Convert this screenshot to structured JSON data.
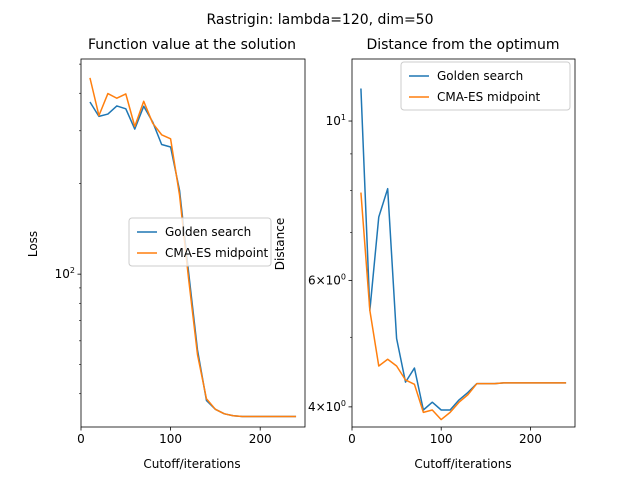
{
  "figure": {
    "suptitle": "Rastrigin: lambda=120, dim=50"
  },
  "chart_data": [
    {
      "type": "line",
      "title": "Function value at the solution",
      "xlabel": "Cutoff/iterations",
      "ylabel": "Loss",
      "yscale": "log",
      "xlim": [
        0,
        250
      ],
      "ylim": [
        31,
        520
      ],
      "xticks": [
        0,
        100,
        200
      ],
      "yticks": [
        {
          "value": 100,
          "label": "10^2"
        }
      ],
      "grid": false,
      "legend": "center-right",
      "x": [
        10,
        20,
        30,
        40,
        50,
        60,
        70,
        80,
        90,
        100,
        110,
        120,
        130,
        140,
        150,
        160,
        170,
        180,
        190,
        200,
        210,
        220,
        230,
        240
      ],
      "series": [
        {
          "name": "Golden search",
          "color": "#1f77b4",
          "values": [
            374,
            335,
            341,
            363,
            355,
            304,
            362,
            321,
            270,
            265,
            190,
            102,
            56,
            38,
            35.5,
            34.3,
            33.8,
            33.6,
            33.6,
            33.6,
            33.6,
            33.6,
            33.6,
            33.6
          ]
        },
        {
          "name": "CMA-ES midpoint",
          "color": "#ff7f0e",
          "values": [
            450,
            337,
            399,
            385,
            398,
            310,
            376,
            318,
            291,
            282,
            183,
            97,
            54,
            38.5,
            35.5,
            34.3,
            33.8,
            33.6,
            33.6,
            33.6,
            33.6,
            33.6,
            33.6,
            33.6
          ]
        }
      ]
    },
    {
      "type": "line",
      "title": "Distance from the optimum",
      "xlabel": "Cutoff/iterations",
      "ylabel": "Distance",
      "yscale": "log",
      "xlim": [
        0,
        250
      ],
      "ylim": [
        3.75,
        12.2
      ],
      "xticks": [
        0,
        100,
        200
      ],
      "yticks": [
        {
          "value": 10,
          "label": "10^1"
        },
        {
          "value": 6,
          "label": "6×10^0"
        },
        {
          "value": 4,
          "label": "4×10^0"
        }
      ],
      "grid": false,
      "legend": "top-right",
      "x": [
        10,
        20,
        30,
        40,
        50,
        60,
        70,
        80,
        90,
        100,
        110,
        120,
        130,
        140,
        150,
        160,
        170,
        180,
        190,
        200,
        210,
        220,
        230,
        240
      ],
      "series": [
        {
          "name": "Golden search",
          "color": "#1f77b4",
          "values": [
            11.1,
            5.45,
            7.35,
            8.05,
            4.98,
            4.33,
            4.53,
            3.96,
            4.06,
            3.96,
            3.96,
            4.09,
            4.19,
            4.31,
            4.31,
            4.31,
            4.32,
            4.32,
            4.32,
            4.32,
            4.32,
            4.32,
            4.32,
            4.32
          ]
        },
        {
          "name": "CMA-ES midpoint",
          "color": "#ff7f0e",
          "values": [
            7.95,
            5.45,
            4.56,
            4.66,
            4.56,
            4.36,
            4.3,
            3.93,
            3.96,
            3.84,
            3.93,
            4.06,
            4.16,
            4.31,
            4.31,
            4.31,
            4.32,
            4.32,
            4.32,
            4.32,
            4.32,
            4.32,
            4.32,
            4.32
          ]
        }
      ]
    }
  ]
}
